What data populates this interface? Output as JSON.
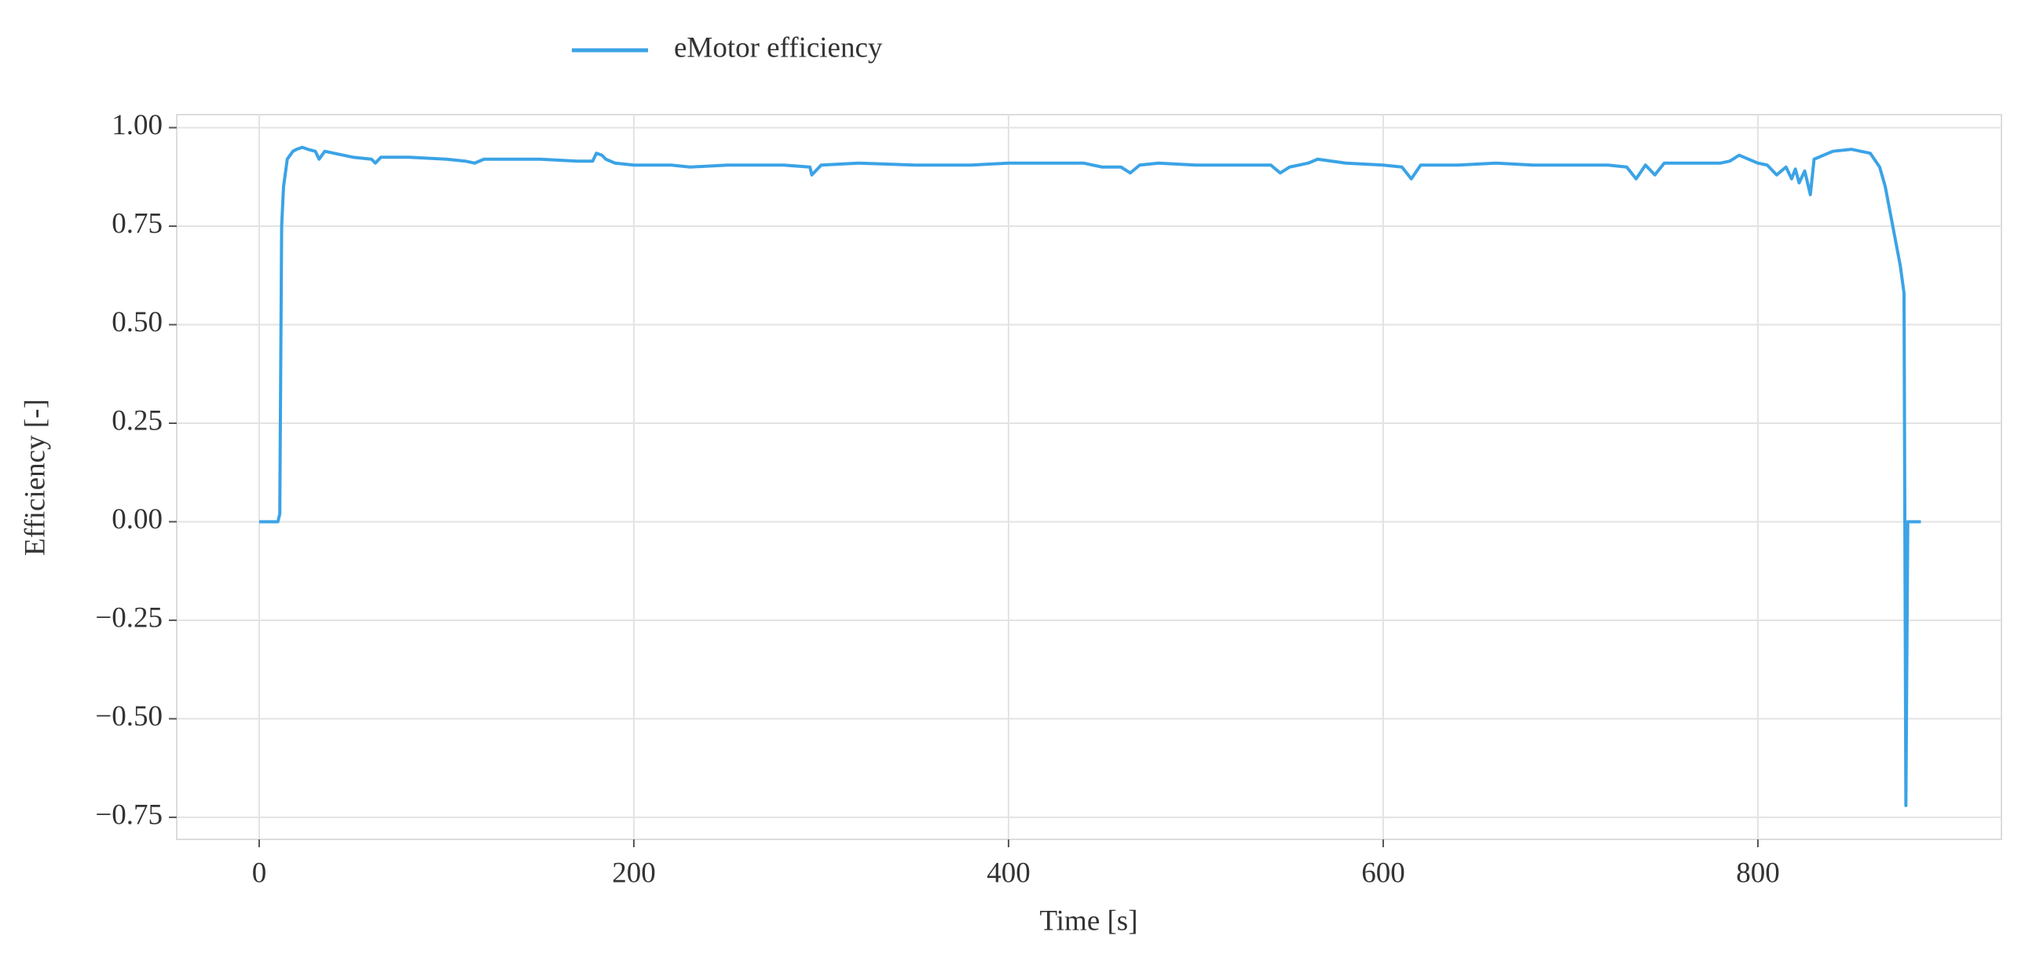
{
  "chart_data": {
    "type": "line",
    "xlabel": "Time [s]",
    "ylabel": "Efficiency [-]",
    "x": [
      0,
      10,
      11,
      12,
      13,
      15,
      18,
      20,
      23,
      26,
      30,
      32,
      35,
      40,
      50,
      60,
      62,
      65,
      80,
      100,
      110,
      115,
      120,
      150,
      170,
      178,
      180,
      183,
      185,
      190,
      200,
      220,
      230,
      250,
      280,
      294,
      295,
      300,
      320,
      350,
      380,
      400,
      430,
      440,
      450,
      460,
      465,
      470,
      480,
      500,
      540,
      545,
      550,
      560,
      565,
      580,
      600,
      610,
      615,
      620,
      640,
      660,
      680,
      700,
      720,
      730,
      735,
      740,
      745,
      750,
      780,
      785,
      790,
      800,
      805,
      810,
      815,
      818,
      820,
      822,
      825,
      828,
      830,
      840,
      850,
      860,
      865,
      868,
      870,
      872,
      874,
      876,
      878,
      879,
      880,
      883,
      887
    ],
    "series": [
      {
        "name": "eMotor efficiency",
        "color": "#3ba3e6",
        "values": [
          0,
          0,
          0.02,
          0.75,
          0.85,
          0.92,
          0.94,
          0.945,
          0.95,
          0.945,
          0.94,
          0.92,
          0.94,
          0.935,
          0.925,
          0.92,
          0.91,
          0.925,
          0.925,
          0.92,
          0.915,
          0.91,
          0.92,
          0.92,
          0.915,
          0.915,
          0.935,
          0.93,
          0.92,
          0.91,
          0.905,
          0.905,
          0.9,
          0.905,
          0.905,
          0.9,
          0.88,
          0.905,
          0.91,
          0.905,
          0.905,
          0.91,
          0.91,
          0.91,
          0.9,
          0.9,
          0.885,
          0.905,
          0.91,
          0.905,
          0.905,
          0.885,
          0.9,
          0.91,
          0.92,
          0.91,
          0.905,
          0.9,
          0.87,
          0.905,
          0.905,
          0.91,
          0.905,
          0.905,
          0.905,
          0.9,
          0.87,
          0.905,
          0.88,
          0.91,
          0.91,
          0.915,
          0.93,
          0.91,
          0.905,
          0.88,
          0.9,
          0.87,
          0.895,
          0.86,
          0.89,
          0.83,
          0.92,
          0.94,
          0.945,
          0.935,
          0.9,
          0.85,
          0.8,
          0.75,
          0.7,
          0.65,
          0.58,
          -0.72,
          0,
          0,
          0
        ]
      }
    ],
    "xlim": [
      -44,
      930
    ],
    "ylim": [
      -0.806,
      1.033
    ],
    "xticks": [
      0,
      200,
      400,
      600,
      800
    ],
    "yticks": [
      {
        "value": -0.75,
        "label": "−0.75"
      },
      {
        "value": -0.5,
        "label": "−0.50"
      },
      {
        "value": -0.25,
        "label": "−0.25"
      },
      {
        "value": 0,
        "label": "0.00"
      },
      {
        "value": 0.25,
        "label": "0.25"
      },
      {
        "value": 0.5,
        "label": "0.50"
      },
      {
        "value": 0.75,
        "label": "0.75"
      },
      {
        "value": 1,
        "label": "1.00"
      }
    ],
    "grid": true,
    "legend": "top"
  }
}
